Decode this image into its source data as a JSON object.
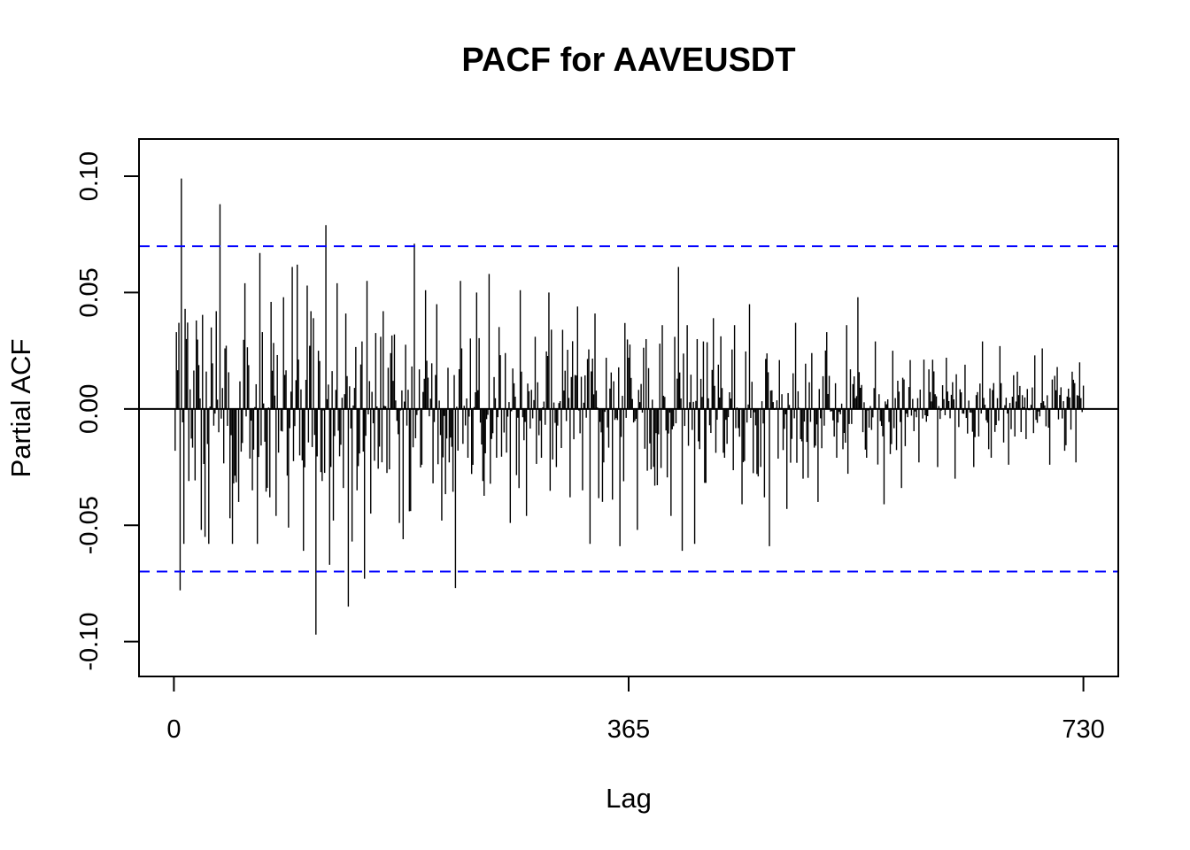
{
  "chart_data": {
    "type": "bar",
    "title": "PACF for AAVEUSDT",
    "xlabel": "Lag",
    "ylabel": "Partial ACF",
    "xlim": [
      -28,
      758
    ],
    "ylim": [
      -0.115,
      0.116
    ],
    "x_ticks": [
      0,
      365,
      730
    ],
    "x_tick_labels": [
      "0",
      "365",
      "730"
    ],
    "y_ticks": [
      -0.1,
      -0.05,
      0.0,
      0.05,
      0.1
    ],
    "y_tick_labels": [
      "-0.10",
      "-0.05",
      "0.00",
      "0.05",
      "0.10"
    ],
    "confidence_bounds": [
      0.0699,
      -0.0699
    ],
    "colors": {
      "bars": "#000000",
      "confidence": "#0000ff",
      "zero_line": "#000000"
    },
    "n_lags": 730,
    "notable_lags": [
      {
        "lag": 1,
        "value": -0.018
      },
      {
        "lag": 2,
        "value": 0.033
      },
      {
        "lag": 4,
        "value": 0.037
      },
      {
        "lag": 5,
        "value": -0.078
      },
      {
        "lag": 6,
        "value": 0.099
      },
      {
        "lag": 8,
        "value": -0.058
      },
      {
        "lag": 9,
        "value": 0.043
      },
      {
        "lag": 12,
        "value": -0.031
      },
      {
        "lag": 18,
        "value": 0.038
      },
      {
        "lag": 22,
        "value": -0.052
      },
      {
        "lag": 25,
        "value": -0.055
      },
      {
        "lag": 28,
        "value": -0.058
      },
      {
        "lag": 30,
        "value": 0.035
      },
      {
        "lag": 34,
        "value": 0.042
      },
      {
        "lag": 37,
        "value": 0.088
      },
      {
        "lag": 41,
        "value": 0.026
      },
      {
        "lag": 45,
        "value": -0.047
      },
      {
        "lag": 47,
        "value": -0.058
      },
      {
        "lag": 52,
        "value": -0.04
      },
      {
        "lag": 57,
        "value": 0.054
      },
      {
        "lag": 63,
        "value": -0.035
      },
      {
        "lag": 67,
        "value": -0.058
      },
      {
        "lag": 69,
        "value": 0.067
      },
      {
        "lag": 78,
        "value": 0.046
      },
      {
        "lag": 82,
        "value": -0.046
      },
      {
        "lag": 88,
        "value": 0.048
      },
      {
        "lag": 92,
        "value": -0.051
      },
      {
        "lag": 95,
        "value": 0.061
      },
      {
        "lag": 99,
        "value": 0.062
      },
      {
        "lag": 101,
        "value": -0.02
      },
      {
        "lag": 104,
        "value": -0.061
      },
      {
        "lag": 107,
        "value": 0.053
      },
      {
        "lag": 110,
        "value": 0.042
      },
      {
        "lag": 112,
        "value": 0.039
      },
      {
        "lag": 114,
        "value": -0.097
      },
      {
        "lag": 116,
        "value": 0.025
      },
      {
        "lag": 119,
        "value": -0.031
      },
      {
        "lag": 122,
        "value": 0.079
      },
      {
        "lag": 125,
        "value": -0.067
      },
      {
        "lag": 128,
        "value": -0.048
      },
      {
        "lag": 131,
        "value": 0.054
      },
      {
        "lag": 136,
        "value": -0.034
      },
      {
        "lag": 138,
        "value": 0.041
      },
      {
        "lag": 140,
        "value": -0.085
      },
      {
        "lag": 143,
        "value": -0.057
      },
      {
        "lag": 147,
        "value": -0.035
      },
      {
        "lag": 151,
        "value": 0.029
      },
      {
        "lag": 153,
        "value": -0.073
      },
      {
        "lag": 155,
        "value": 0.055
      },
      {
        "lag": 158,
        "value": -0.045
      },
      {
        "lag": 166,
        "value": 0.031
      },
      {
        "lag": 168,
        "value": 0.042
      },
      {
        "lag": 173,
        "value": -0.026
      },
      {
        "lag": 177,
        "value": 0.032
      },
      {
        "lag": 181,
        "value": -0.049
      },
      {
        "lag": 184,
        "value": -0.056
      },
      {
        "lag": 189,
        "value": -0.044
      },
      {
        "lag": 193,
        "value": 0.071
      },
      {
        "lag": 199,
        "value": -0.024
      },
      {
        "lag": 202,
        "value": 0.051
      },
      {
        "lag": 208,
        "value": -0.032
      },
      {
        "lag": 211,
        "value": 0.045
      },
      {
        "lag": 215,
        "value": -0.048
      },
      {
        "lag": 221,
        "value": -0.023
      },
      {
        "lag": 226,
        "value": -0.077
      },
      {
        "lag": 230,
        "value": 0.055
      },
      {
        "lag": 236,
        "value": -0.021
      },
      {
        "lag": 243,
        "value": 0.05
      },
      {
        "lag": 248,
        "value": -0.031
      },
      {
        "lag": 253,
        "value": 0.058
      },
      {
        "lag": 259,
        "value": -0.021
      },
      {
        "lag": 266,
        "value": 0.024
      },
      {
        "lag": 270,
        "value": -0.049
      },
      {
        "lag": 278,
        "value": 0.051
      },
      {
        "lag": 283,
        "value": -0.046
      },
      {
        "lag": 290,
        "value": 0.031
      },
      {
        "lag": 295,
        "value": -0.021
      },
      {
        "lag": 301,
        "value": 0.05
      },
      {
        "lag": 307,
        "value": -0.025
      },
      {
        "lag": 312,
        "value": 0.034
      },
      {
        "lag": 318,
        "value": -0.038
      },
      {
        "lag": 324,
        "value": 0.044
      },
      {
        "lag": 328,
        "value": -0.035
      },
      {
        "lag": 334,
        "value": -0.058
      },
      {
        "lag": 338,
        "value": 0.041
      },
      {
        "lag": 345,
        "value": -0.023
      },
      {
        "lag": 352,
        "value": -0.039
      },
      {
        "lag": 358,
        "value": -0.059
      },
      {
        "lag": 365,
        "value": 0.022
      },
      {
        "lag": 372,
        "value": -0.052
      },
      {
        "lag": 379,
        "value": 0.03
      },
      {
        "lag": 386,
        "value": -0.033
      },
      {
        "lag": 392,
        "value": 0.036
      },
      {
        "lag": 399,
        "value": -0.046
      },
      {
        "lag": 405,
        "value": 0.061
      },
      {
        "lag": 408,
        "value": -0.061
      },
      {
        "lag": 412,
        "value": 0.036
      },
      {
        "lag": 418,
        "value": -0.058
      },
      {
        "lag": 425,
        "value": 0.029
      },
      {
        "lag": 433,
        "value": 0.039
      },
      {
        "lag": 442,
        "value": -0.021
      },
      {
        "lag": 450,
        "value": 0.036
      },
      {
        "lag": 456,
        "value": -0.041
      },
      {
        "lag": 462,
        "value": 0.045
      },
      {
        "lag": 468,
        "value": -0.028
      },
      {
        "lag": 474,
        "value": -0.038
      },
      {
        "lag": 478,
        "value": -0.059
      },
      {
        "lag": 486,
        "value": 0.021
      },
      {
        "lag": 492,
        "value": -0.043
      },
      {
        "lag": 499,
        "value": 0.037
      },
      {
        "lag": 505,
        "value": -0.03
      },
      {
        "lag": 512,
        "value": 0.024
      },
      {
        "lag": 517,
        "value": -0.04
      },
      {
        "lag": 524,
        "value": 0.033
      },
      {
        "lag": 532,
        "value": -0.021
      },
      {
        "lag": 540,
        "value": 0.036
      },
      {
        "lag": 549,
        "value": 0.048
      },
      {
        "lag": 556,
        "value": -0.021
      },
      {
        "lag": 563,
        "value": 0.029
      },
      {
        "lag": 570,
        "value": -0.041
      },
      {
        "lag": 577,
        "value": 0.025
      },
      {
        "lag": 584,
        "value": -0.034
      },
      {
        "lag": 591,
        "value": 0.021
      },
      {
        "lag": 598,
        "value": -0.023
      },
      {
        "lag": 606,
        "value": 0.017
      },
      {
        "lag": 613,
        "value": -0.025
      },
      {
        "lag": 620,
        "value": 0.022
      },
      {
        "lag": 627,
        "value": -0.03
      },
      {
        "lag": 635,
        "value": 0.019
      },
      {
        "lag": 642,
        "value": -0.025
      },
      {
        "lag": 649,
        "value": 0.029
      },
      {
        "lag": 656,
        "value": -0.021
      },
      {
        "lag": 663,
        "value": 0.027
      },
      {
        "lag": 670,
        "value": -0.024
      },
      {
        "lag": 677,
        "value": 0.016
      },
      {
        "lag": 684,
        "value": -0.013
      },
      {
        "lag": 691,
        "value": 0.023
      },
      {
        "lag": 697,
        "value": 0.026
      },
      {
        "lag": 703,
        "value": -0.024
      },
      {
        "lag": 709,
        "value": 0.018
      },
      {
        "lag": 715,
        "value": -0.018
      },
      {
        "lag": 721,
        "value": 0.016
      },
      {
        "lag": 724,
        "value": -0.023
      },
      {
        "lag": 727,
        "value": 0.02
      },
      {
        "lag": 730,
        "value": 0.01
      }
    ]
  }
}
